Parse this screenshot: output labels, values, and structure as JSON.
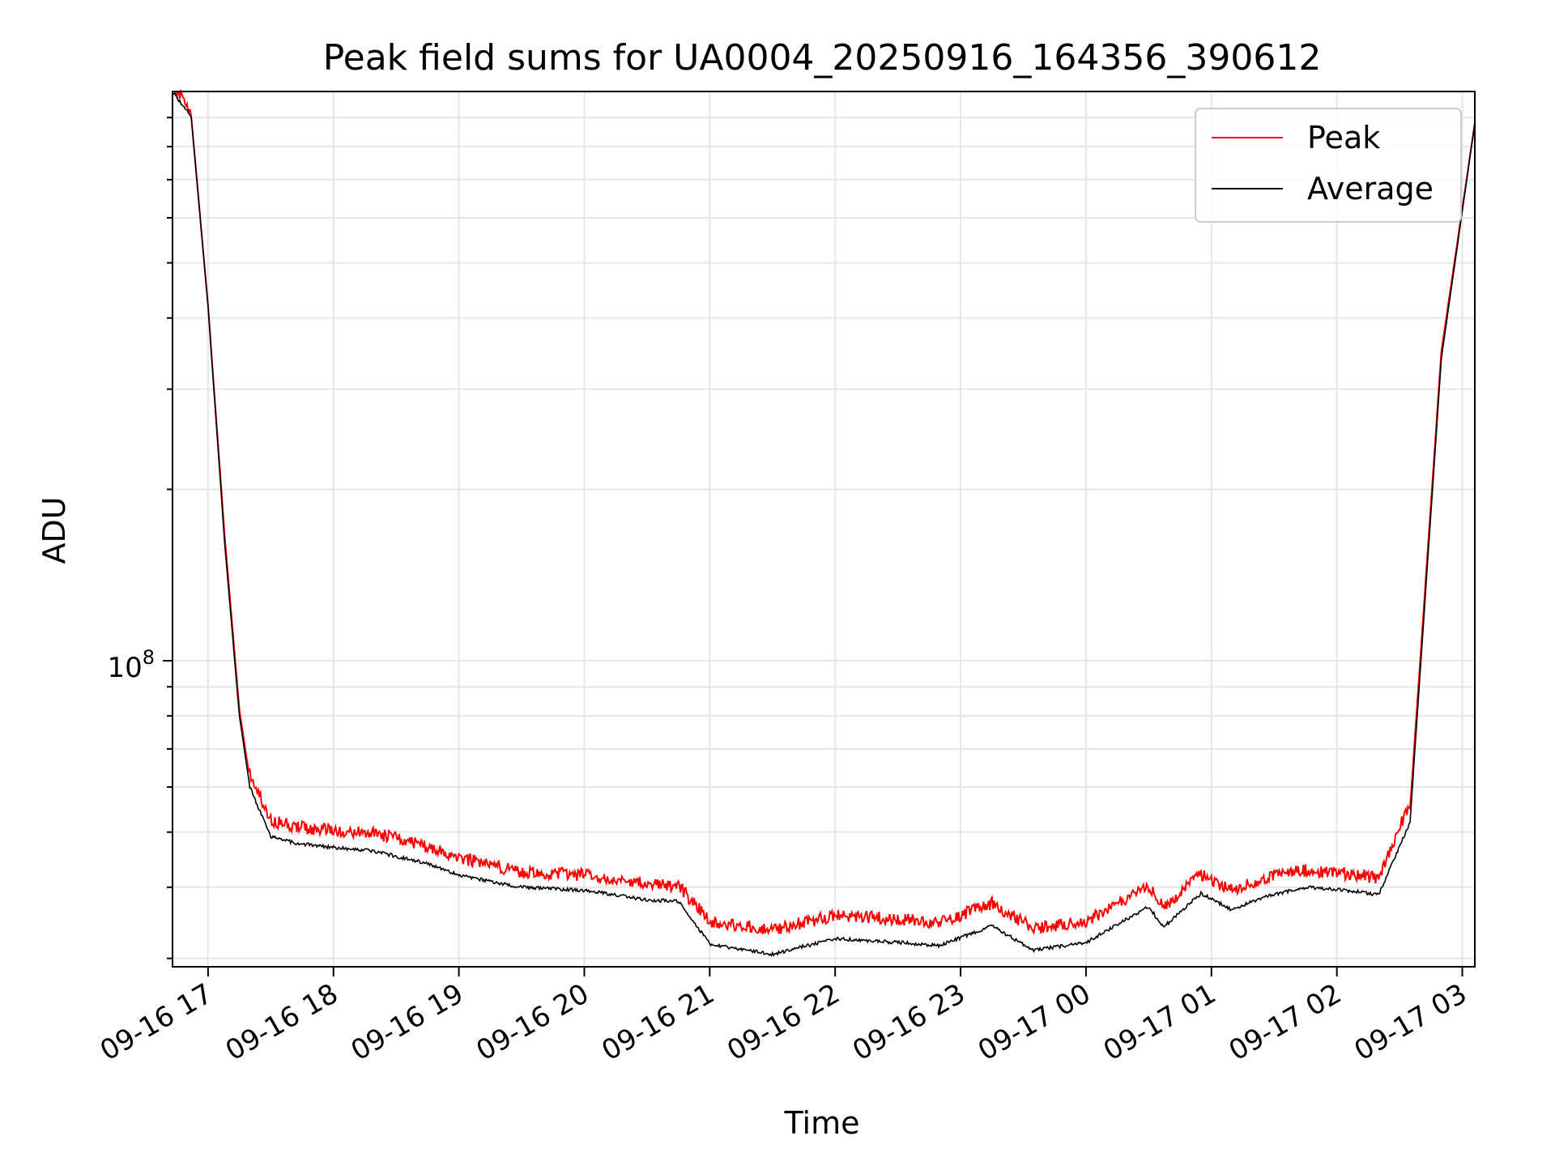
{
  "chart_data": {
    "type": "line",
    "title": "Peak field sums for UA0004_20250916_164356_390612",
    "xlabel": "Time",
    "ylabel": "ADU",
    "y_scale": "log",
    "y_tick_label": "10",
    "y_tick_exponent": "8",
    "y_tick_value": 100000000,
    "ylim": [
      29000000,
      1000000000
    ],
    "xlim": [
      "2025-09-16 16:43",
      "2025-09-17 03:06"
    ],
    "x_tick_labels": [
      "09-16 17",
      "09-16 18",
      "09-16 19",
      "09-16 20",
      "09-16 21",
      "09-16 22",
      "09-16 23",
      "09-17 00",
      "09-17 01",
      "09-17 02",
      "09-17 03"
    ],
    "x_tick_values": [
      "2025-09-16 17:00",
      "2025-09-16 18:00",
      "2025-09-16 19:00",
      "2025-09-16 20:00",
      "2025-09-16 21:00",
      "2025-09-16 22:00",
      "2025-09-16 23:00",
      "2025-09-17 00:00",
      "2025-09-17 01:00",
      "2025-09-17 02:00",
      "2025-09-17 03:00"
    ],
    "grid": true,
    "legend": "top-right",
    "series": [
      {
        "name": "Peak",
        "color": "#ff0000",
        "x": [
          "2025-09-16 16:43",
          "2025-09-16 16:52",
          "2025-09-16 17:00",
          "2025-09-16 17:08",
          "2025-09-16 17:15",
          "2025-09-16 17:20",
          "2025-09-16 17:30",
          "2025-09-16 17:36",
          "2025-09-16 17:42",
          "2025-09-16 18:00",
          "2025-09-16 18:15",
          "2025-09-16 18:25",
          "2025-09-16 18:45",
          "2025-09-16 19:00",
          "2025-09-16 19:30",
          "2025-09-16 20:00",
          "2025-09-16 20:30",
          "2025-09-16 20:45",
          "2025-09-16 21:00",
          "2025-09-16 21:30",
          "2025-09-16 22:00",
          "2025-09-16 22:30",
          "2025-09-16 22:50",
          "2025-09-16 23:15",
          "2025-09-16 23:35",
          "2025-09-17 00:00",
          "2025-09-17 00:30",
          "2025-09-17 00:37",
          "2025-09-17 00:55",
          "2025-09-17 01:10",
          "2025-09-17 01:25",
          "2025-09-17 01:45",
          "2025-09-17 02:05",
          "2025-09-17 02:20",
          "2025-09-17 02:35",
          "2025-09-17 02:50",
          "2025-09-17 03:06"
        ],
        "y": [
          1000000000,
          900000000,
          420000000,
          165000000,
          82000000,
          62000000,
          51000000,
          50500000,
          49800000,
          49000000,
          48800000,
          48000000,
          46000000,
          44000000,
          41500000,
          41000000,
          39500000,
          39200000,
          34000000,
          32800000,
          34800000,
          34300000,
          33800000,
          36500000,
          33000000,
          34000000,
          39000000,
          36000000,
          41000000,
          38500000,
          40500000,
          41800000,
          41200000,
          40500000,
          55000000,
          350000000,
          880000000
        ]
      },
      {
        "name": "Average",
        "color": "#000000",
        "x": [
          "2025-09-16 16:43",
          "2025-09-16 16:52",
          "2025-09-16 17:00",
          "2025-09-16 17:08",
          "2025-09-16 17:15",
          "2025-09-16 17:20",
          "2025-09-16 17:30",
          "2025-09-16 17:36",
          "2025-09-16 17:42",
          "2025-09-16 18:00",
          "2025-09-16 18:15",
          "2025-09-16 18:25",
          "2025-09-16 18:45",
          "2025-09-16 19:00",
          "2025-09-16 19:30",
          "2025-09-16 20:00",
          "2025-09-16 20:30",
          "2025-09-16 20:45",
          "2025-09-16 21:00",
          "2025-09-16 21:30",
          "2025-09-16 22:00",
          "2025-09-16 22:30",
          "2025-09-16 22:50",
          "2025-09-16 23:15",
          "2025-09-16 23:35",
          "2025-09-17 00:00",
          "2025-09-17 00:30",
          "2025-09-17 00:37",
          "2025-09-17 00:55",
          "2025-09-17 01:10",
          "2025-09-17 01:25",
          "2025-09-17 01:45",
          "2025-09-17 02:05",
          "2025-09-17 02:20",
          "2025-09-17 02:35",
          "2025-09-17 02:50",
          "2025-09-17 03:06"
        ],
        "y": [
          1000000000,
          900000000,
          420000000,
          160000000,
          80000000,
          60000000,
          49000000,
          48500000,
          47800000,
          47000000,
          46500000,
          45800000,
          44000000,
          42000000,
          40000000,
          39500000,
          38000000,
          37800000,
          31800000,
          30500000,
          32500000,
          32000000,
          31600000,
          34200000,
          31000000,
          32000000,
          37000000,
          34000000,
          39000000,
          36500000,
          38500000,
          40000000,
          39500000,
          38800000,
          52000000,
          340000000,
          880000000
        ]
      }
    ]
  }
}
